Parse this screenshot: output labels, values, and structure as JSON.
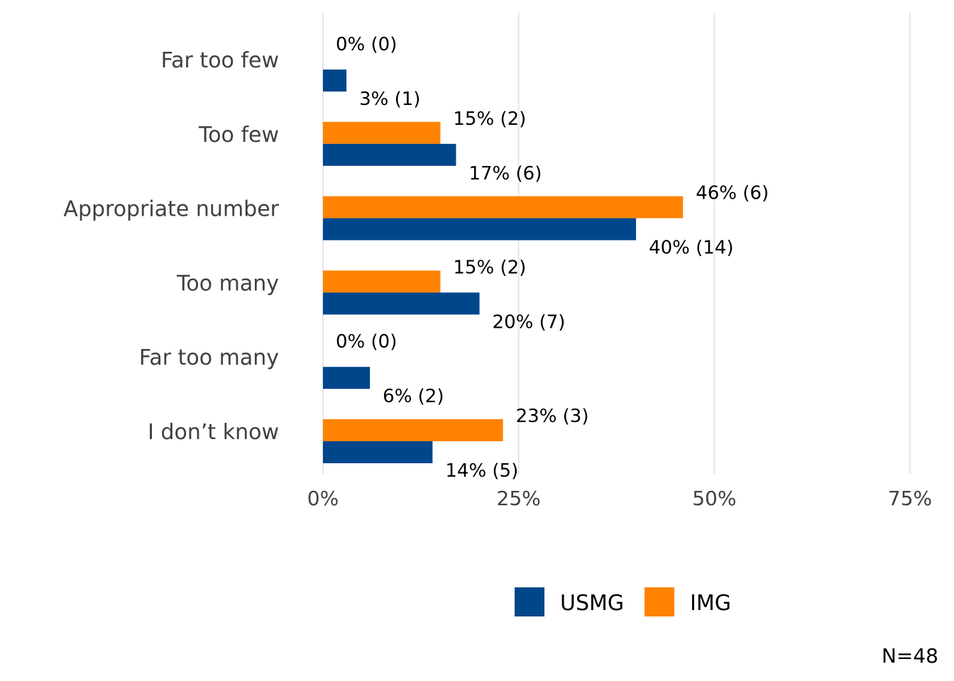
{
  "chart_data": {
    "type": "bar",
    "orientation": "horizontal",
    "categories": [
      "Far too few",
      "Too few",
      "Appropriate number",
      "Too many",
      "Far too many",
      "I don’t know"
    ],
    "series": [
      {
        "name": "IMG",
        "color": "#FF8200",
        "values": [
          0,
          15,
          46,
          15,
          0,
          23
        ],
        "labels": [
          "0% (0)",
          "15% (2)",
          "46% (6)",
          "15% (2)",
          "0% (0)",
          "23% (3)"
        ]
      },
      {
        "name": "USMG",
        "color": "#00468B",
        "values": [
          3,
          17,
          40,
          20,
          6,
          14
        ],
        "labels": [
          "3% (1)",
          "17% (6)",
          "40% (14)",
          "20% (7)",
          "6% (2)",
          "14% (5)"
        ]
      }
    ],
    "xlim": [
      0,
      75
    ],
    "xticks": [
      0,
      25,
      50,
      75
    ],
    "xtick_labels": [
      "0%",
      "25%",
      "50%",
      "75%"
    ],
    "grid": true,
    "legend": {
      "placement": "bottom",
      "order": [
        "USMG",
        "IMG"
      ]
    },
    "note": "N=48"
  }
}
